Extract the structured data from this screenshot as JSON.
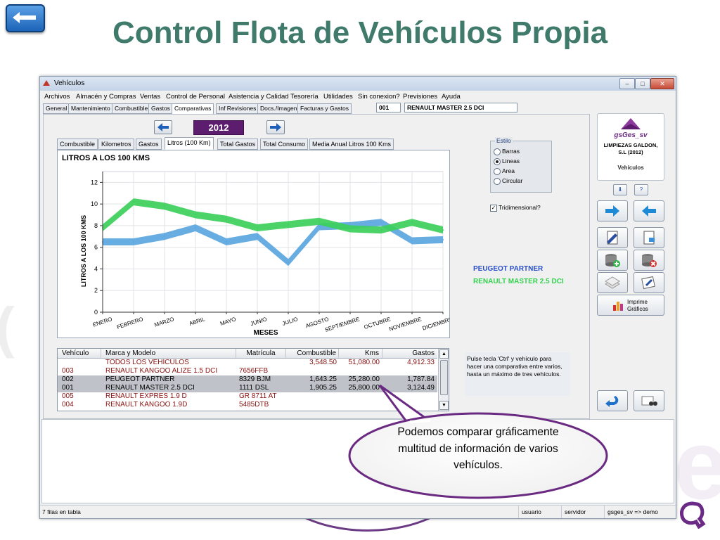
{
  "slide": {
    "title": "Control Flota de Vehículos Propia"
  },
  "window": {
    "title": "Vehículos",
    "menu": [
      "Archivos",
      "Almacén y Compras",
      "Ventas",
      "Control de Personal",
      "Asistencia y Calidad",
      "Tesorería",
      "Utilidades",
      "Sin conexion?",
      "Previsiones",
      "Ayuda"
    ],
    "tabs": [
      "General",
      "Mantenimiento",
      "Combustible",
      "Gastos",
      "Comparativas",
      "Inf Revisiones",
      "Docs./Imagen",
      "Facturas y Gastos"
    ],
    "active_tab": "Comparativas",
    "vehicle_code": "001",
    "vehicle_name": "RENAULT MASTER 2.5 DCI"
  },
  "comparativas": {
    "year": "2012",
    "chart_tabs": [
      "Combustible",
      "Kilometros",
      "Gastos",
      "Litros (100 Km)",
      "Total Gastos",
      "Total Consumo",
      "Media Anual Litros 100 Kms"
    ],
    "active_chart_tab": "Litros (100 Km)",
    "style_group": {
      "title": "Estilo",
      "options": [
        "Barras",
        "Lineas",
        "Area",
        "Circular"
      ],
      "selected": "Lineas"
    },
    "tridimensional_label": "Tridimensional?",
    "tridimensional_checked": true,
    "legend": [
      {
        "name": "PEUGEOT PARTNER",
        "color": "#2a4fc9"
      },
      {
        "name": "RENAULT MASTER 2.5 DCI",
        "color": "#33d14f"
      }
    ],
    "note": "Pulse tecla 'Ctrl' y vehículo para hacer una comparativa entre varios, hasta un máximo de tres vehículos."
  },
  "chart_data": {
    "type": "line",
    "title": "LITROS A LOS 100 KMS",
    "xlabel": "MESES",
    "ylabel": "LITROS A LOS 100 KMS",
    "categories": [
      "ENERO",
      "FEBRERO",
      "MARZO",
      "ABRIL",
      "MAYO",
      "JUNIO",
      "JULIO",
      "AGOSTO",
      "SEPTIEMBRE",
      "OCTUBRE",
      "NOVIEMBRE",
      "DICIEMBRE"
    ],
    "ylim": [
      0,
      13
    ],
    "yticks": [
      "0",
      "2",
      "4",
      "6",
      "8",
      "10",
      "12"
    ],
    "grid": true,
    "three_dimensional": true,
    "series": [
      {
        "name": "PEUGEOT PARTNER",
        "color": "#5aa6df",
        "values": [
          6.5,
          6.5,
          7.0,
          7.8,
          6.5,
          7.0,
          4.6,
          7.9,
          8.0,
          8.3,
          6.6,
          6.7
        ]
      },
      {
        "name": "RENAULT MASTER 2.5 DCI",
        "color": "#3ccf5a",
        "values": [
          7.8,
          10.2,
          9.8,
          9.0,
          8.6,
          7.8,
          8.1,
          8.4,
          7.7,
          7.6,
          8.3,
          7.6
        ]
      }
    ]
  },
  "table": {
    "columns": [
      "Vehículo",
      "Marca y Modelo",
      "Matrícula",
      "Combustible",
      "Kms",
      "Gastos"
    ],
    "rows": [
      {
        "vehiculo": "",
        "marca": "TODOS LOS VEHÍCULOS",
        "matricula": "",
        "combustible": "3,548.50",
        "kms": "51,080.00",
        "gastos": "4,912.33",
        "selected": false
      },
      {
        "vehiculo": "003",
        "marca": "RENAULT KANGOO ALIZE 1.5 DCI",
        "matricula": "7656FFB",
        "combustible": "",
        "kms": "",
        "gastos": "",
        "selected": false
      },
      {
        "vehiculo": "002",
        "marca": "PEUGEOT PARTNER",
        "matricula": "8329 BJM",
        "combustible": "1,643.25",
        "kms": "25,280.00",
        "gastos": "1,787.84",
        "selected": true
      },
      {
        "vehiculo": "001",
        "marca": "RENAULT MASTER 2.5 DCI",
        "matricula": "1111 DSL",
        "combustible": "1,905.25",
        "kms": "25,800.00",
        "gastos": "3,124.49",
        "selected": true
      },
      {
        "vehiculo": "005",
        "marca": "RENAULT EXPRES 1.9 D",
        "matricula": "GR 8711 AT",
        "combustible": "",
        "kms": "",
        "gastos": "",
        "selected": false
      },
      {
        "vehiculo": "004",
        "marca": "RENAULT KANGOO 1.9D",
        "matricula": "5485DTB",
        "combustible": "",
        "kms": "",
        "gastos": "",
        "selected": false
      }
    ]
  },
  "side": {
    "logo_name": "gsGes_sv",
    "company": "LIMPIEZAS GALDON, S.L (2012)",
    "module": "Vehículos",
    "print_label": "Imprime Gráficos"
  },
  "status": {
    "rows": "7 filas en tabla",
    "user": "usuario",
    "server": "servidor",
    "session": "gsges_sv => demo"
  },
  "callout": {
    "text": "Podemos comparar gráficamente multitud de información de varios vehículos."
  },
  "colors": {
    "title": "#3f7a6b",
    "year_bg": "#5c1d6e",
    "row_text_red": "#8a1010",
    "callout_border": "#6a2a82"
  }
}
